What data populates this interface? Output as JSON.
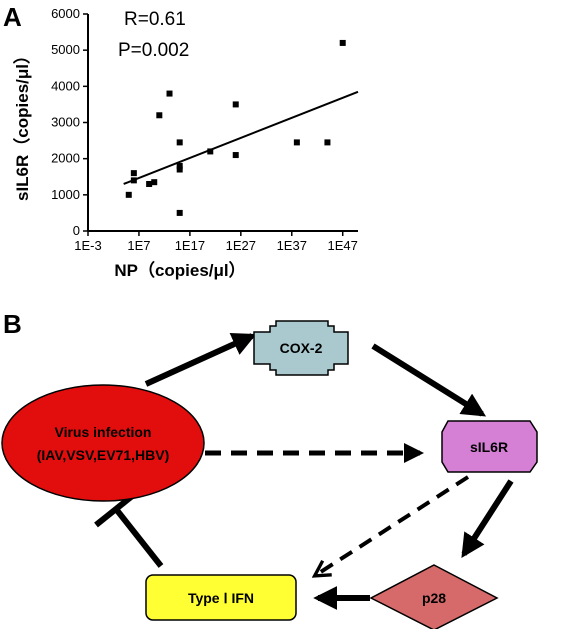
{
  "panel_a": {
    "label": "A",
    "annotations": {
      "r": "R=0.61",
      "p": "P=0.002"
    }
  },
  "panel_b": {
    "label": "B",
    "nodes": {
      "virus_line1": "Virus infection",
      "virus_line2": "(IAV,VSV,EV71,HBV)",
      "cox2": "COX-2",
      "sil6r": "sIL6R",
      "p28": "p28",
      "ifn": "Type Ⅰ IFN"
    },
    "colors": {
      "virus": "#e20e0e",
      "cox2": "#a9c9cf",
      "sil6r": "#d57fd5",
      "p28": "#d66a6a",
      "ifn": "#ffff33"
    }
  },
  "chart_data": {
    "type": "scatter",
    "xlabel": "NP（copies/μl）",
    "ylabel": "sIL6R（copies/μl）",
    "x_scale": "log10",
    "xlim_exp": [
      -3,
      50
    ],
    "ylim": [
      0,
      6000
    ],
    "x_tick_labels": [
      "1E-3",
      "1E7",
      "1E17",
      "1E27",
      "1E37",
      "1E47"
    ],
    "x_tick_exps": [
      -3,
      7,
      17,
      27,
      37,
      47
    ],
    "y_ticks": [
      0,
      1000,
      2000,
      3000,
      4000,
      5000,
      6000
    ],
    "points_exp_y": [
      [
        5,
        1000
      ],
      [
        6,
        1400
      ],
      [
        6,
        1600
      ],
      [
        9,
        1300
      ],
      [
        10,
        1350
      ],
      [
        11,
        3200
      ],
      [
        13,
        3800
      ],
      [
        15,
        500
      ],
      [
        15,
        1700
      ],
      [
        15,
        1800
      ],
      [
        15,
        2450
      ],
      [
        21,
        2200
      ],
      [
        26,
        2100
      ],
      [
        26,
        3500
      ],
      [
        38,
        2450
      ],
      [
        44,
        2450
      ],
      [
        47,
        5200
      ]
    ],
    "fit_line_exp_y": [
      [
        4,
        1300
      ],
      [
        50,
        3850
      ]
    ]
  }
}
